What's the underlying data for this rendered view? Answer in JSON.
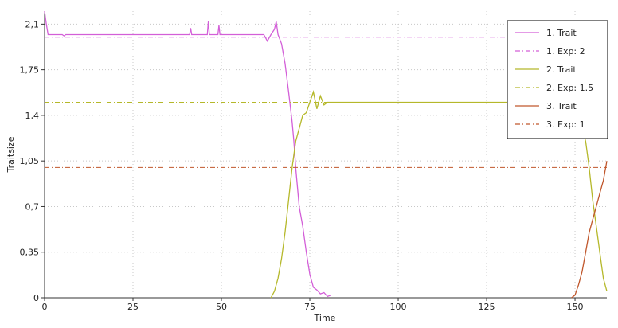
{
  "chart_data": {
    "type": "line",
    "title": "",
    "xlabel": "Time",
    "ylabel": "Traitsize",
    "xlim": [
      0,
      159
    ],
    "ylim": [
      0,
      2.2
    ],
    "x_ticks": [
      0,
      25,
      50,
      75,
      100,
      125,
      150
    ],
    "x_tick_labels": [
      "0",
      "25",
      "50",
      "75",
      "100",
      "125",
      "150"
    ],
    "y_ticks": [
      0,
      0.35,
      0.7,
      1.05,
      1.4,
      1.75,
      2.1
    ],
    "y_tick_labels": [
      "0",
      "0,35",
      "0,7",
      "1,05",
      "1,4",
      "1,75",
      "2,1"
    ],
    "grid": true,
    "legend_position": "top-right",
    "series": [
      {
        "name": "1. Trait",
        "style": "solid",
        "color": "#d35fd8",
        "points": [
          [
            0,
            2.2
          ],
          [
            0.5,
            2.1
          ],
          [
            1,
            2.02
          ],
          [
            5,
            2.02
          ],
          [
            5.5,
            2.01
          ],
          [
            6,
            2.02
          ],
          [
            41,
            2.02
          ],
          [
            41.3,
            2.07
          ],
          [
            41.6,
            2.02
          ],
          [
            46,
            2.02
          ],
          [
            46.3,
            2.12
          ],
          [
            46.6,
            2.02
          ],
          [
            49,
            2.02
          ],
          [
            49.3,
            2.09
          ],
          [
            49.6,
            2.02
          ],
          [
            62,
            2.02
          ],
          [
            63,
            1.97
          ],
          [
            64,
            2.02
          ],
          [
            65,
            2.06
          ],
          [
            65.5,
            2.12
          ],
          [
            66,
            2.02
          ],
          [
            67,
            1.95
          ],
          [
            68,
            1.8
          ],
          [
            69,
            1.58
          ],
          [
            70,
            1.35
          ],
          [
            70.5,
            1.2
          ],
          [
            71,
            1.0
          ],
          [
            71.5,
            0.85
          ],
          [
            72,
            0.7
          ],
          [
            73,
            0.55
          ],
          [
            74,
            0.35
          ],
          [
            75,
            0.18
          ],
          [
            76,
            0.08
          ],
          [
            77,
            0.06
          ],
          [
            78,
            0.03
          ],
          [
            79,
            0.04
          ],
          [
            80,
            0.01
          ],
          [
            81,
            0.02
          ]
        ]
      },
      {
        "name": "1. Exp: 2",
        "style": "dashdot",
        "color": "#d35fd8",
        "points": [
          [
            0,
            2.0
          ],
          [
            159,
            2.0
          ]
        ]
      },
      {
        "name": "2. Trait",
        "style": "solid",
        "color": "#b5b82a",
        "points": [
          [
            64,
            0
          ],
          [
            65,
            0.05
          ],
          [
            66,
            0.15
          ],
          [
            67,
            0.3
          ],
          [
            68,
            0.5
          ],
          [
            69,
            0.75
          ],
          [
            70,
            1.0
          ],
          [
            71,
            1.2
          ],
          [
            72,
            1.3
          ],
          [
            73,
            1.4
          ],
          [
            74,
            1.42
          ],
          [
            75,
            1.5
          ],
          [
            76,
            1.58
          ],
          [
            77,
            1.45
          ],
          [
            78,
            1.55
          ],
          [
            79,
            1.48
          ],
          [
            80,
            1.5
          ],
          [
            148,
            1.5
          ],
          [
            149,
            1.48
          ],
          [
            150,
            1.45
          ],
          [
            151,
            1.35
          ],
          [
            152,
            1.3
          ],
          [
            153,
            1.2
          ],
          [
            154,
            1.0
          ],
          [
            155,
            0.75
          ],
          [
            156,
            0.55
          ],
          [
            157,
            0.35
          ],
          [
            158,
            0.15
          ],
          [
            159,
            0.05
          ]
        ]
      },
      {
        "name": "2. Exp: 1.5",
        "style": "dashdot",
        "color": "#b5b82a",
        "points": [
          [
            0,
            1.5
          ],
          [
            159,
            1.5
          ]
        ]
      },
      {
        "name": "3. Trait",
        "style": "solid",
        "color": "#c0572c",
        "points": [
          [
            149,
            0
          ],
          [
            150,
            0.02
          ],
          [
            151,
            0.1
          ],
          [
            152,
            0.2
          ],
          [
            153,
            0.35
          ],
          [
            154,
            0.5
          ],
          [
            155,
            0.6
          ],
          [
            156,
            0.7
          ],
          [
            157,
            0.8
          ],
          [
            158,
            0.9
          ],
          [
            159,
            1.05
          ]
        ]
      },
      {
        "name": "3. Exp: 1",
        "style": "dashdot",
        "color": "#c0572c",
        "points": [
          [
            0,
            1.0
          ],
          [
            159,
            1.0
          ]
        ]
      }
    ]
  }
}
